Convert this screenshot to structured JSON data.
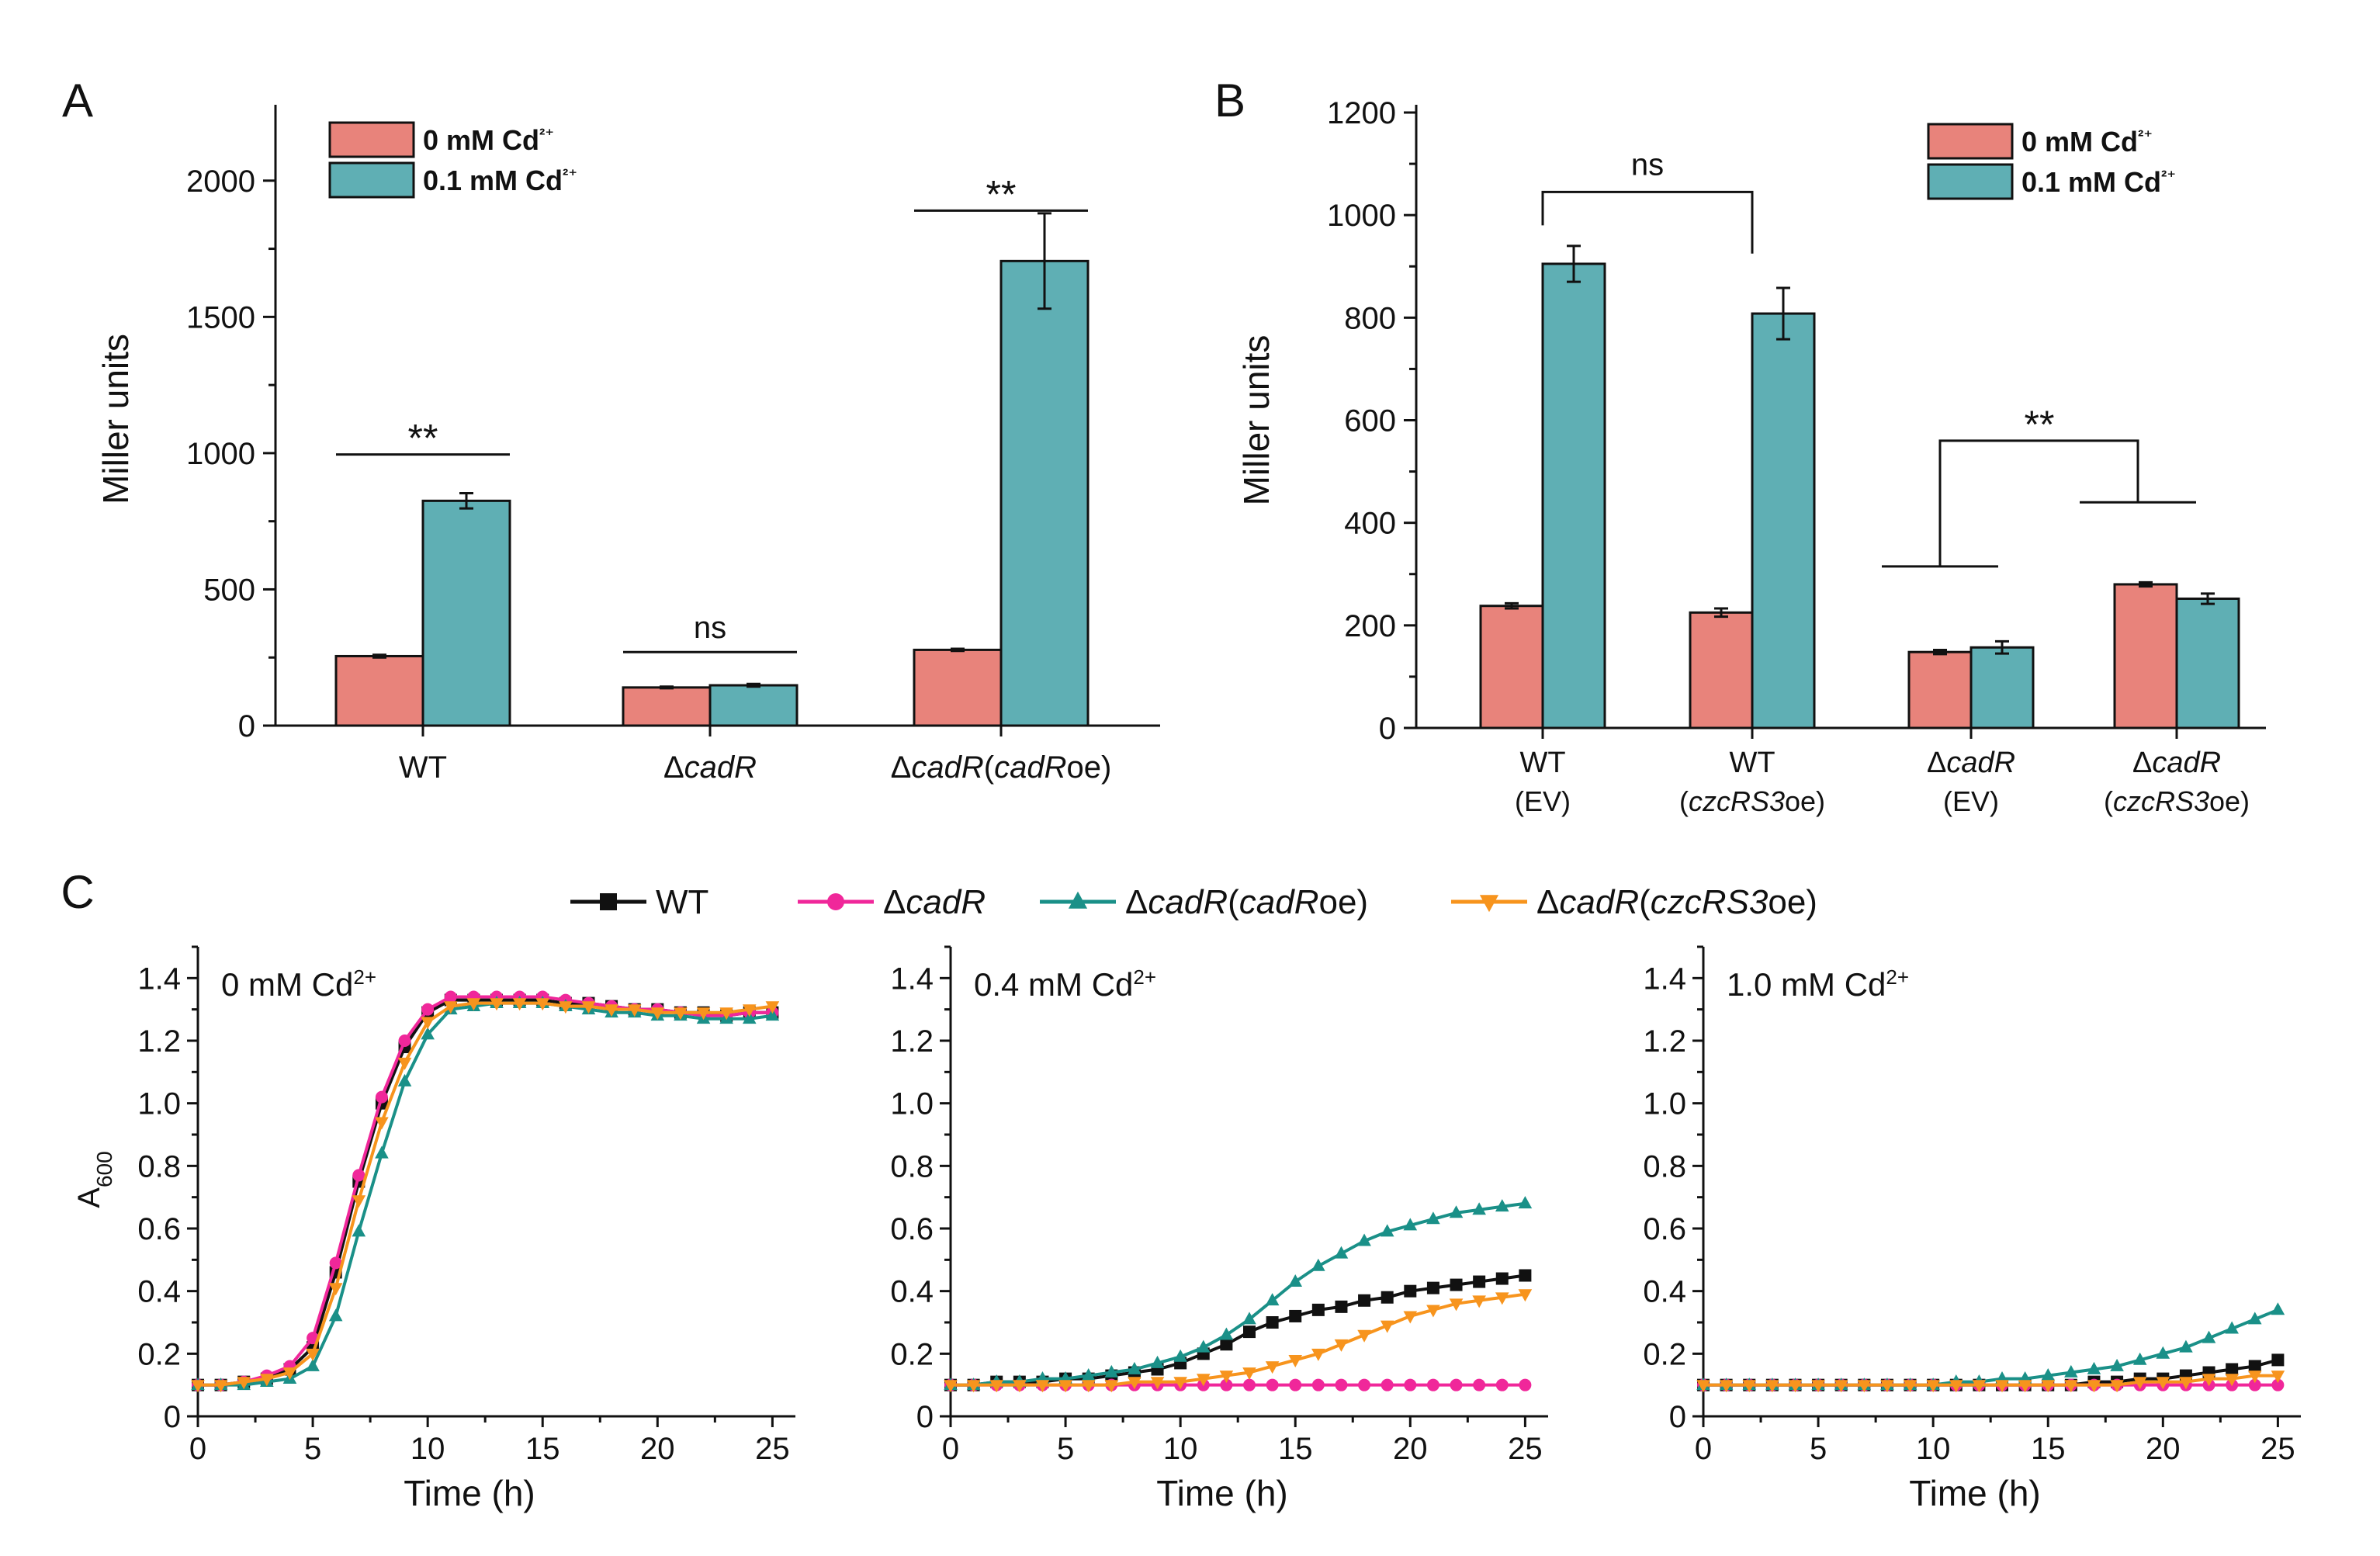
{
  "colors": {
    "pink_bar": "#E8837B",
    "teal_bar": "#5FAFB4",
    "wt": "#111111",
    "dcadr": "#F0279A",
    "cadroe": "#1A9088",
    "czcrs3oe": "#F7941D"
  },
  "chart_data": [
    {
      "panel": "A",
      "type": "bar",
      "ylabel": "Miller units",
      "ylim": [
        0,
        2250
      ],
      "yticks": [
        0,
        500,
        1000,
        1500,
        2000
      ],
      "legend": [
        "0 mM Cd²⁺",
        "0.1 mM Cd²⁺"
      ],
      "legend_position": "top-left",
      "categories": [
        "WT",
        "ΔcadR",
        "ΔcadR(cadRoe)"
      ],
      "category_labels": [
        [
          {
            "t": "WT",
            "i": false
          }
        ],
        [
          {
            "t": "Δ",
            "i": false
          },
          {
            "t": "cadR",
            "i": true
          }
        ],
        [
          {
            "t": "Δ",
            "i": false
          },
          {
            "t": "cadR",
            "i": true
          },
          {
            "t": "(",
            "i": false
          },
          {
            "t": "cadR",
            "i": true
          },
          {
            "t": "oe)",
            "i": false
          }
        ]
      ],
      "series": [
        {
          "name": "0 mM Cd²⁺",
          "values": [
            255,
            140,
            278
          ],
          "errors": [
            5,
            3,
            4
          ]
        },
        {
          "name": "0.1 mM Cd²⁺",
          "values": [
            825,
            148,
            1705
          ],
          "errors": [
            28,
            5,
            175
          ]
        }
      ],
      "annotations": [
        "**",
        "ns",
        "**"
      ]
    },
    {
      "panel": "B",
      "type": "bar",
      "ylabel": "Miller units",
      "ylim": [
        0,
        1200
      ],
      "yticks": [
        0,
        200,
        400,
        600,
        800,
        1000,
        1200
      ],
      "legend": [
        "0 mM Cd²⁺",
        "0.1 mM Cd²⁺"
      ],
      "legend_position": "top-right",
      "categories": [
        "WT (EV)",
        "WT (czcRS3oe)",
        "ΔcadR (EV)",
        "ΔcadR (czcRS3oe)"
      ],
      "category_labels": [
        {
          "line1": [
            {
              "t": "WT",
              "i": false
            }
          ],
          "line2": [
            {
              "t": "(EV)",
              "i": false
            }
          ]
        },
        {
          "line1": [
            {
              "t": "WT",
              "i": false
            }
          ],
          "line2": [
            {
              "t": "(",
              "i": false
            },
            {
              "t": "czcRS3",
              "i": true
            },
            {
              "t": "oe)",
              "i": false
            }
          ]
        },
        {
          "line1": [
            {
              "t": "Δ",
              "i": false
            },
            {
              "t": "cadR",
              "i": true
            }
          ],
          "line2": [
            {
              "t": "(EV)",
              "i": false
            }
          ]
        },
        {
          "line1": [
            {
              "t": "Δ",
              "i": false
            },
            {
              "t": "cadR",
              "i": true
            }
          ],
          "line2": [
            {
              "t": "(",
              "i": false
            },
            {
              "t": "czcRS3",
              "i": true
            },
            {
              "t": "oe)",
              "i": false
            }
          ]
        }
      ],
      "series": [
        {
          "name": "0 mM Cd²⁺",
          "values": [
            238,
            225,
            148,
            280
          ],
          "errors": [
            5,
            8,
            4,
            4
          ]
        },
        {
          "name": "0.1 mM Cd²⁺",
          "values": [
            905,
            808,
            157,
            252
          ],
          "errors": [
            35,
            50,
            12,
            10
          ]
        }
      ],
      "annotations": [
        "ns",
        "**"
      ]
    },
    {
      "panel": "C",
      "type": "line",
      "xlabel": "Time (h)",
      "ylabel": "A600",
      "xlim": [
        0,
        26
      ],
      "ylim": [
        0,
        1.5
      ],
      "xticks": [
        0,
        5,
        10,
        15,
        20,
        25
      ],
      "yticks": [
        0,
        0.2,
        0.4,
        0.6,
        0.8,
        1.0,
        1.2,
        1.4
      ],
      "x": [
        0,
        1,
        2,
        3,
        4,
        5,
        6,
        7,
        8,
        9,
        10,
        11,
        12,
        13,
        14,
        15,
        16,
        17,
        18,
        19,
        20,
        21,
        22,
        23,
        24,
        25
      ],
      "legend": [
        {
          "key": "wt",
          "marker": "square",
          "parts": [
            {
              "t": "WT",
              "i": false
            }
          ]
        },
        {
          "key": "dcadr",
          "marker": "circle",
          "parts": [
            {
              "t": "Δ",
              "i": false
            },
            {
              "t": "cadR",
              "i": true
            }
          ]
        },
        {
          "key": "cadroe",
          "marker": "triangle",
          "parts": [
            {
              "t": "Δ",
              "i": false
            },
            {
              "t": "cadR",
              "i": true
            },
            {
              "t": "(",
              "i": false
            },
            {
              "t": "cadR",
              "i": true
            },
            {
              "t": "oe)",
              "i": false
            }
          ]
        },
        {
          "key": "czcrs3oe",
          "marker": "triangle-down",
          "parts": [
            {
              "t": "Δ",
              "i": false
            },
            {
              "t": "cadR",
              "i": true
            },
            {
              "t": "(",
              "i": false
            },
            {
              "t": "czcRS3",
              "i": true
            },
            {
              "t": "oe)",
              "i": false
            }
          ]
        }
      ],
      "legend_position": "top-center",
      "subplots": [
        {
          "label": "0 mM Cd2+",
          "label_main": "0 mM Cd",
          "label_sup": "2+",
          "series": [
            {
              "key": "wt",
              "values": [
                0.1,
                0.1,
                0.11,
                0.12,
                0.15,
                0.22,
                0.46,
                0.75,
                1.0,
                1.18,
                1.29,
                1.33,
                1.33,
                1.33,
                1.33,
                1.33,
                1.32,
                1.32,
                1.31,
                1.3,
                1.3,
                1.29,
                1.29,
                1.28,
                1.29,
                1.29
              ]
            },
            {
              "key": "dcadr",
              "values": [
                0.1,
                0.1,
                0.11,
                0.13,
                0.16,
                0.25,
                0.49,
                0.77,
                1.02,
                1.2,
                1.3,
                1.34,
                1.34,
                1.34,
                1.34,
                1.34,
                1.33,
                1.32,
                1.31,
                1.3,
                1.3,
                1.29,
                1.28,
                1.28,
                1.29,
                1.29
              ]
            },
            {
              "key": "cadroe",
              "values": [
                0.1,
                0.1,
                0.1,
                0.11,
                0.12,
                0.16,
                0.32,
                0.59,
                0.84,
                1.07,
                1.22,
                1.3,
                1.31,
                1.32,
                1.32,
                1.32,
                1.31,
                1.3,
                1.29,
                1.29,
                1.28,
                1.28,
                1.27,
                1.27,
                1.27,
                1.28
              ]
            },
            {
              "key": "czcrs3oe",
              "values": [
                0.1,
                0.1,
                0.11,
                0.12,
                0.14,
                0.2,
                0.41,
                0.69,
                0.94,
                1.13,
                1.26,
                1.31,
                1.32,
                1.32,
                1.32,
                1.32,
                1.31,
                1.31,
                1.3,
                1.3,
                1.29,
                1.29,
                1.29,
                1.29,
                1.3,
                1.31
              ]
            }
          ]
        },
        {
          "label": "0.4 mM Cd2+",
          "label_main": "0.4 mM Cd",
          "label_sup": "2+",
          "series": [
            {
              "key": "wt",
              "values": [
                0.1,
                0.1,
                0.11,
                0.11,
                0.11,
                0.12,
                0.12,
                0.13,
                0.14,
                0.15,
                0.17,
                0.2,
                0.23,
                0.27,
                0.3,
                0.32,
                0.34,
                0.35,
                0.37,
                0.38,
                0.4,
                0.41,
                0.42,
                0.43,
                0.44,
                0.45
              ]
            },
            {
              "key": "dcadr",
              "values": [
                0.1,
                0.1,
                0.1,
                0.1,
                0.1,
                0.1,
                0.1,
                0.1,
                0.1,
                0.1,
                0.1,
                0.1,
                0.1,
                0.1,
                0.1,
                0.1,
                0.1,
                0.1,
                0.1,
                0.1,
                0.1,
                0.1,
                0.1,
                0.1,
                0.1,
                0.1
              ]
            },
            {
              "key": "cadroe",
              "values": [
                0.1,
                0.1,
                0.11,
                0.11,
                0.12,
                0.12,
                0.13,
                0.14,
                0.15,
                0.17,
                0.19,
                0.22,
                0.26,
                0.31,
                0.37,
                0.43,
                0.48,
                0.52,
                0.56,
                0.59,
                0.61,
                0.63,
                0.65,
                0.66,
                0.67,
                0.68
              ]
            },
            {
              "key": "czcrs3oe",
              "values": [
                0.1,
                0.1,
                0.1,
                0.1,
                0.1,
                0.1,
                0.1,
                0.1,
                0.11,
                0.11,
                0.11,
                0.12,
                0.13,
                0.14,
                0.16,
                0.18,
                0.2,
                0.23,
                0.26,
                0.29,
                0.32,
                0.34,
                0.36,
                0.37,
                0.38,
                0.39
              ]
            }
          ]
        },
        {
          "label": "1.0 mM Cd2+",
          "label_main": "1.0 mM Cd",
          "label_sup": "2+",
          "series": [
            {
              "key": "wt",
              "values": [
                0.1,
                0.1,
                0.1,
                0.1,
                0.1,
                0.1,
                0.1,
                0.1,
                0.1,
                0.1,
                0.1,
                0.1,
                0.1,
                0.1,
                0.1,
                0.1,
                0.1,
                0.11,
                0.11,
                0.12,
                0.12,
                0.13,
                0.14,
                0.15,
                0.16,
                0.18
              ]
            },
            {
              "key": "dcadr",
              "values": [
                0.1,
                0.1,
                0.1,
                0.1,
                0.1,
                0.1,
                0.1,
                0.1,
                0.1,
                0.1,
                0.1,
                0.1,
                0.1,
                0.1,
                0.1,
                0.1,
                0.1,
                0.1,
                0.1,
                0.1,
                0.1,
                0.1,
                0.1,
                0.1,
                0.1,
                0.1
              ]
            },
            {
              "key": "cadroe",
              "values": [
                0.1,
                0.1,
                0.1,
                0.1,
                0.1,
                0.1,
                0.1,
                0.1,
                0.1,
                0.1,
                0.1,
                0.11,
                0.11,
                0.12,
                0.12,
                0.13,
                0.14,
                0.15,
                0.16,
                0.18,
                0.2,
                0.22,
                0.25,
                0.28,
                0.31,
                0.34
              ]
            },
            {
              "key": "czcrs3oe",
              "values": [
                0.1,
                0.1,
                0.1,
                0.1,
                0.1,
                0.1,
                0.1,
                0.1,
                0.1,
                0.1,
                0.1,
                0.1,
                0.1,
                0.1,
                0.1,
                0.1,
                0.1,
                0.1,
                0.1,
                0.11,
                0.11,
                0.11,
                0.12,
                0.12,
                0.13,
                0.13
              ]
            }
          ]
        }
      ]
    }
  ]
}
